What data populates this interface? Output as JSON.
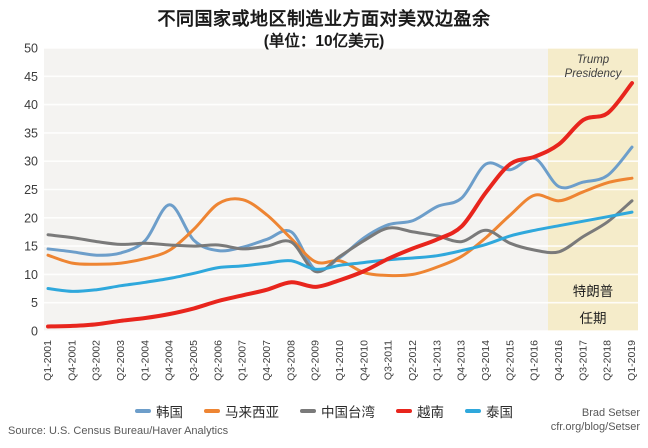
{
  "title": "不同国家或地区制造业方面对美双边盈余",
  "subtitle": "(单位：10亿美元)",
  "annotations": {
    "trump_en": "Trump Presidency",
    "trump_en_line1": "Trump",
    "trump_en_line2": "Presidency",
    "trump_zh_line1": "特朗普",
    "trump_zh_line2": "任期"
  },
  "source": "Source: U.S. Census Bureau/Haver Analytics",
  "credit": {
    "line1": "Brad Setser",
    "line2": "cfr.org/blog/Setser"
  },
  "colors": {
    "plot_background": "#f4f3f1",
    "gridline": "#ffffff",
    "shading": "#f5ecca",
    "axis_text": "#3c3c3c"
  },
  "chart_data": {
    "type": "line",
    "title": "不同国家或地区制造业方面对美双边盈余",
    "subtitle": "(单位：10亿美元)",
    "xlabel": "",
    "ylabel": "",
    "ylim": [
      0,
      50
    ],
    "ytick_step": 5,
    "grid": true,
    "legend_position": "bottom",
    "x_tick_labels": [
      "Q1-2001",
      "Q4-2001",
      "Q3-2002",
      "Q2-2003",
      "Q1-2004",
      "Q4-2004",
      "Q3-2005",
      "Q2-2006",
      "Q1-2007",
      "Q4-2007",
      "Q3-2008",
      "Q2-2009",
      "Q1-2010",
      "Q4-2010",
      "Q3-2011",
      "Q2-2012",
      "Q1-2013",
      "Q4-2013",
      "Q3-2014",
      "Q2-2015",
      "Q1-2016",
      "Q4-2016",
      "Q3-2017",
      "Q2-2018",
      "Q1-2019"
    ],
    "shaded_region": {
      "label": "Trump Presidency",
      "start_tick_label": "Q4-2016",
      "start_tick_index": 21,
      "end": "right edge",
      "color": "#f5ecca"
    },
    "series": [
      {
        "name": "韩国",
        "color": "#6d9eca",
        "width": 3,
        "values": [
          14.5,
          14.0,
          13.4,
          13.8,
          16.0,
          22.3,
          16.0,
          14.2,
          14.8,
          16.2,
          17.5,
          10.8,
          13.0,
          16.5,
          18.8,
          19.5,
          22.0,
          23.5,
          29.5,
          28.5,
          30.5,
          25.5,
          26.3,
          27.5,
          32.5
        ]
      },
      {
        "name": "马来西亚",
        "color": "#ee8533",
        "width": 3,
        "values": [
          13.4,
          12.0,
          11.8,
          12.0,
          12.8,
          14.3,
          18.0,
          22.5,
          23.2,
          20.5,
          16.3,
          12.2,
          12.4,
          10.3,
          9.8,
          10.0,
          11.3,
          13.2,
          16.5,
          20.5,
          24.0,
          23.0,
          24.6,
          26.2,
          27.0
        ]
      },
      {
        "name": "中国台湾",
        "color": "#7a7a7a",
        "width": 3,
        "values": [
          17.0,
          16.5,
          15.8,
          15.3,
          15.5,
          15.2,
          15.0,
          15.2,
          14.5,
          15.0,
          15.7,
          10.5,
          13.2,
          16.0,
          18.2,
          17.5,
          16.8,
          15.8,
          17.8,
          15.5,
          14.3,
          14.0,
          16.7,
          19.3,
          23.0
        ]
      },
      {
        "name": "泰国",
        "color": "#2fa8dc",
        "width": 3,
        "values": [
          7.5,
          7.0,
          7.3,
          8.0,
          8.6,
          9.3,
          10.2,
          11.2,
          11.5,
          12.0,
          12.4,
          10.9,
          11.6,
          12.1,
          12.6,
          12.9,
          13.3,
          14.2,
          15.3,
          16.8,
          17.8,
          18.6,
          19.4,
          20.2,
          21.0
        ]
      },
      {
        "name": "越南",
        "color": "#e8251d",
        "width": 4,
        "values": [
          0.8,
          0.9,
          1.2,
          1.8,
          2.3,
          3.0,
          4.0,
          5.3,
          6.3,
          7.3,
          8.6,
          7.8,
          9.0,
          10.6,
          12.8,
          14.6,
          16.2,
          18.5,
          24.5,
          29.5,
          30.8,
          33.0,
          37.3,
          38.5,
          43.8
        ]
      }
    ],
    "legend_order": [
      "韩国",
      "马来西亚",
      "中国台湾",
      "越南",
      "泰国"
    ]
  }
}
